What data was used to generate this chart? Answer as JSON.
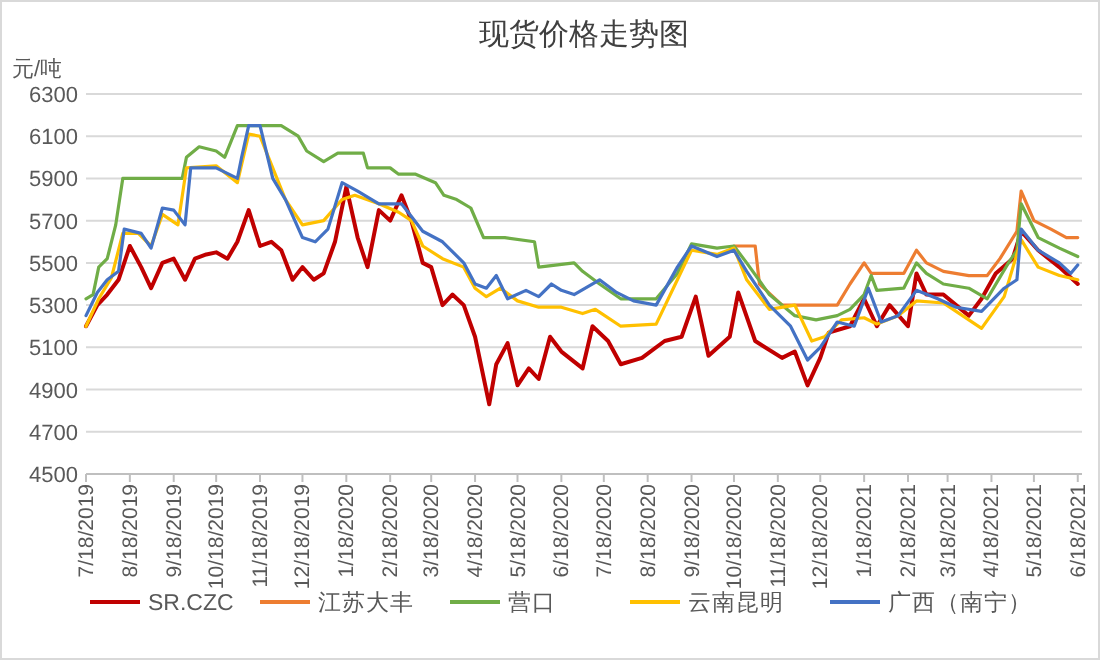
{
  "chart_data": {
    "type": "line",
    "title": "现货价格走势图",
    "ylabel": "元/吨",
    "xlim": [
      "2019-07-18",
      "2021-06-21"
    ],
    "ylim": [
      4500,
      6300
    ],
    "xticks": [
      {
        "value": "2019-07-18",
        "label": "7/18/2019"
      },
      {
        "value": "2019-08-18",
        "label": "8/18/2019"
      },
      {
        "value": "2019-09-18",
        "label": "9/18/2019"
      },
      {
        "value": "2019-10-18",
        "label": "10/18/2019"
      },
      {
        "value": "2019-11-18",
        "label": "11/18/2019"
      },
      {
        "value": "2019-12-18",
        "label": "12/18/2019"
      },
      {
        "value": "2020-01-18",
        "label": "1/18/2020"
      },
      {
        "value": "2020-02-18",
        "label": "2/18/2020"
      },
      {
        "value": "2020-03-18",
        "label": "3/18/2020"
      },
      {
        "value": "2020-04-18",
        "label": "4/18/2020"
      },
      {
        "value": "2020-05-18",
        "label": "5/18/2020"
      },
      {
        "value": "2020-06-18",
        "label": "6/18/2020"
      },
      {
        "value": "2020-07-18",
        "label": "7/18/2020"
      },
      {
        "value": "2020-08-18",
        "label": "8/18/2020"
      },
      {
        "value": "2020-09-18",
        "label": "9/18/2020"
      },
      {
        "value": "2020-10-18",
        "label": "10/18/2020"
      },
      {
        "value": "2020-11-18",
        "label": "11/18/2020"
      },
      {
        "value": "2020-12-18",
        "label": "12/18/2020"
      },
      {
        "value": "2021-01-18",
        "label": "1/18/2021"
      },
      {
        "value": "2021-02-18",
        "label": "2/18/2021"
      },
      {
        "value": "2021-03-18",
        "label": "3/18/2021"
      },
      {
        "value": "2021-04-18",
        "label": "4/18/2021"
      },
      {
        "value": "2021-05-18",
        "label": "5/18/2021"
      },
      {
        "value": "2021-06-18",
        "label": "6/18/2021"
      }
    ],
    "yticks": [
      4500,
      4700,
      4900,
      5100,
      5300,
      5500,
      5700,
      5900,
      6100,
      6300
    ],
    "grid": "y",
    "legend": "bottom",
    "marker": "none",
    "line_style": "solid",
    "series": [
      {
        "name": "SR.CZC",
        "color": "#c00000",
        "x": [
          "2019-07-18",
          "2019-07-26",
          "2019-08-02",
          "2019-08-10",
          "2019-08-18",
          "2019-08-26",
          "2019-09-02",
          "2019-09-10",
          "2019-09-18",
          "2019-09-26",
          "2019-10-03",
          "2019-10-11",
          "2019-10-18",
          "2019-10-26",
          "2019-11-02",
          "2019-11-10",
          "2019-11-18",
          "2019-11-26",
          "2019-12-03",
          "2019-12-11",
          "2019-12-18",
          "2019-12-26",
          "2020-01-02",
          "2020-01-10",
          "2020-01-18",
          "2020-01-26",
          "2020-02-02",
          "2020-02-10",
          "2020-02-18",
          "2020-02-26",
          "2020-03-04",
          "2020-03-12",
          "2020-03-18",
          "2020-03-26",
          "2020-04-02",
          "2020-04-10",
          "2020-04-18",
          "2020-04-28",
          "2020-05-03",
          "2020-05-11",
          "2020-05-18",
          "2020-05-26",
          "2020-06-02",
          "2020-06-10",
          "2020-06-18",
          "2020-07-03",
          "2020-07-10",
          "2020-07-21",
          "2020-07-30",
          "2020-08-14",
          "2020-08-30",
          "2020-09-11",
          "2020-09-21",
          "2020-09-30",
          "2020-10-15",
          "2020-10-21",
          "2020-11-02",
          "2020-11-21",
          "2020-11-30",
          "2020-12-09",
          "2020-12-18",
          "2020-12-24",
          "2021-01-08",
          "2021-01-18",
          "2021-01-27",
          "2021-02-05",
          "2021-02-18",
          "2021-02-24",
          "2021-03-03",
          "2021-03-15",
          "2021-03-24",
          "2021-04-02",
          "2021-04-11",
          "2021-04-21",
          "2021-05-03",
          "2021-05-09",
          "2021-05-21",
          "2021-06-05",
          "2021-06-18"
        ],
        "values": [
          5200,
          5300,
          5350,
          5420,
          5580,
          5480,
          5380,
          5500,
          5520,
          5420,
          5520,
          5540,
          5550,
          5520,
          5600,
          5750,
          5580,
          5600,
          5560,
          5420,
          5480,
          5420,
          5450,
          5600,
          5860,
          5620,
          5480,
          5750,
          5700,
          5820,
          5700,
          5500,
          5480,
          5300,
          5350,
          5300,
          5150,
          4830,
          5020,
          5120,
          4920,
          5000,
          4950,
          5150,
          5080,
          5000,
          5200,
          5130,
          5020,
          5050,
          5130,
          5150,
          5340,
          5060,
          5150,
          5360,
          5130,
          5050,
          5080,
          4920,
          5050,
          5170,
          5200,
          5330,
          5200,
          5300,
          5200,
          5450,
          5350,
          5350,
          5300,
          5250,
          5330,
          5450,
          5520,
          5650,
          5560,
          5480,
          5400
        ]
      },
      {
        "name": "江苏大丰",
        "color": "#ed7d31",
        "x": [
          "2020-10-18",
          "2020-11-02",
          "2020-11-05",
          "2020-11-21",
          "2020-12-30",
          "2021-01-08",
          "2021-01-18",
          "2021-01-23",
          "2021-02-15",
          "2021-02-24",
          "2021-03-03",
          "2021-03-15",
          "2021-04-02",
          "2021-04-15",
          "2021-04-24",
          "2021-05-06",
          "2021-05-09",
          "2021-05-18",
          "2021-05-30",
          "2021-06-10",
          "2021-06-18"
        ],
        "values": [
          5580,
          5580,
          5400,
          5300,
          5300,
          5400,
          5500,
          5450,
          5450,
          5560,
          5500,
          5460,
          5440,
          5440,
          5520,
          5650,
          5840,
          5700,
          5660,
          5620,
          5620
        ]
      },
      {
        "name": "营口",
        "color": "#70ad47",
        "x": [
          "2019-07-18",
          "2019-07-23",
          "2019-07-27",
          "2019-08-02",
          "2019-08-08",
          "2019-08-13",
          "2019-09-24",
          "2019-09-27",
          "2019-10-06",
          "2019-10-18",
          "2019-10-24",
          "2019-11-02",
          "2019-12-03",
          "2019-12-15",
          "2019-12-21",
          "2020-01-02",
          "2020-01-12",
          "2020-01-30",
          "2020-02-02",
          "2020-02-18",
          "2020-02-24",
          "2020-03-07",
          "2020-03-21",
          "2020-03-27",
          "2020-04-05",
          "2020-04-15",
          "2020-04-24",
          "2020-05-09",
          "2020-05-30",
          "2020-06-02",
          "2020-06-27",
          "2020-07-03",
          "2020-07-15",
          "2020-07-30",
          "2020-08-24",
          "2020-09-08",
          "2020-09-18",
          "2020-10-06",
          "2020-10-18",
          "2020-10-27",
          "2020-11-12",
          "2020-11-30",
          "2020-12-15",
          "2020-12-30",
          "2021-01-08",
          "2021-01-18",
          "2021-01-23",
          "2021-01-27",
          "2021-02-15",
          "2021-02-24",
          "2021-03-03",
          "2021-03-15",
          "2021-04-02",
          "2021-04-15",
          "2021-04-30",
          "2021-05-06",
          "2021-05-09",
          "2021-05-21",
          "2021-06-05",
          "2021-06-18"
        ],
        "values": [
          5330,
          5350,
          5480,
          5520,
          5680,
          5900,
          5900,
          6000,
          6050,
          6030,
          6000,
          6150,
          6150,
          6100,
          6030,
          5980,
          6020,
          6020,
          5950,
          5950,
          5920,
          5920,
          5880,
          5820,
          5800,
          5760,
          5620,
          5620,
          5600,
          5480,
          5500,
          5460,
          5400,
          5330,
          5330,
          5450,
          5590,
          5570,
          5580,
          5500,
          5350,
          5250,
          5230,
          5250,
          5280,
          5350,
          5440,
          5370,
          5380,
          5500,
          5450,
          5400,
          5380,
          5330,
          5500,
          5560,
          5780,
          5620,
          5570,
          5530
        ]
      },
      {
        "name": "云南昆明",
        "color": "#ffc000",
        "x": [
          "2019-07-18",
          "2019-07-27",
          "2019-08-05",
          "2019-08-13",
          "2019-08-24",
          "2019-09-02",
          "2019-09-10",
          "2019-09-21",
          "2019-09-27",
          "2019-10-18",
          "2019-11-02",
          "2019-11-10",
          "2019-11-18",
          "2019-11-24",
          "2019-12-06",
          "2019-12-18",
          "2020-01-02",
          "2020-01-15",
          "2020-01-24",
          "2020-02-10",
          "2020-02-24",
          "2020-03-04",
          "2020-03-12",
          "2020-03-26",
          "2020-04-10",
          "2020-04-18",
          "2020-04-26",
          "2020-05-06",
          "2020-05-18",
          "2020-06-02",
          "2020-06-18",
          "2020-07-03",
          "2020-07-12",
          "2020-07-30",
          "2020-08-24",
          "2020-09-08",
          "2020-09-18",
          "2020-10-06",
          "2020-10-18",
          "2020-10-27",
          "2020-11-12",
          "2020-11-30",
          "2020-12-12",
          "2020-12-21",
          "2021-01-02",
          "2021-01-18",
          "2021-01-27",
          "2021-02-11",
          "2021-02-24",
          "2021-03-15",
          "2021-03-24",
          "2021-04-11",
          "2021-04-27",
          "2021-05-09",
          "2021-05-21",
          "2021-06-05",
          "2021-06-18"
        ],
        "values": [
          5200,
          5330,
          5430,
          5640,
          5640,
          5580,
          5730,
          5680,
          5950,
          5960,
          5880,
          6110,
          6100,
          6000,
          5800,
          5680,
          5700,
          5800,
          5820,
          5780,
          5740,
          5700,
          5580,
          5520,
          5480,
          5380,
          5340,
          5380,
          5320,
          5290,
          5290,
          5260,
          5280,
          5200,
          5210,
          5420,
          5560,
          5540,
          5570,
          5420,
          5280,
          5300,
          5130,
          5150,
          5230,
          5240,
          5210,
          5250,
          5320,
          5310,
          5270,
          5190,
          5340,
          5610,
          5480,
          5440,
          5420
        ]
      },
      {
        "name": "广西（南宁）",
        "color": "#4472c4",
        "x": [
          "2019-07-18",
          "2019-07-26",
          "2019-08-02",
          "2019-08-10",
          "2019-08-14",
          "2019-08-26",
          "2019-09-02",
          "2019-09-10",
          "2019-09-18",
          "2019-09-26",
          "2019-09-30",
          "2019-10-18",
          "2019-11-02",
          "2019-11-05",
          "2019-11-10",
          "2019-11-18",
          "2019-11-27",
          "2019-12-06",
          "2019-12-18",
          "2019-12-27",
          "2020-01-05",
          "2020-01-15",
          "2020-01-26",
          "2020-02-10",
          "2020-02-26",
          "2020-03-04",
          "2020-03-12",
          "2020-03-26",
          "2020-04-10",
          "2020-04-18",
          "2020-04-26",
          "2020-05-03",
          "2020-05-11",
          "2020-05-24",
          "2020-06-02",
          "2020-06-11",
          "2020-06-18",
          "2020-06-27",
          "2020-07-15",
          "2020-07-27",
          "2020-08-08",
          "2020-08-24",
          "2020-09-08",
          "2020-09-18",
          "2020-10-06",
          "2020-10-18",
          "2020-10-27",
          "2020-11-12",
          "2020-11-27",
          "2020-12-09",
          "2020-12-18",
          "2020-12-30",
          "2021-01-11",
          "2021-01-21",
          "2021-01-30",
          "2021-02-11",
          "2021-02-24",
          "2021-03-11",
          "2021-03-24",
          "2021-04-11",
          "2021-04-27",
          "2021-05-06",
          "2021-05-09",
          "2021-05-21",
          "2021-06-05",
          "2021-06-13",
          "2021-06-18"
        ],
        "values": [
          5250,
          5360,
          5420,
          5460,
          5660,
          5640,
          5570,
          5760,
          5750,
          5680,
          5950,
          5950,
          5900,
          6000,
          6150,
          6150,
          5900,
          5800,
          5620,
          5600,
          5660,
          5880,
          5840,
          5780,
          5780,
          5720,
          5650,
          5600,
          5500,
          5400,
          5380,
          5440,
          5330,
          5370,
          5340,
          5400,
          5370,
          5350,
          5420,
          5360,
          5320,
          5300,
          5480,
          5580,
          5530,
          5560,
          5460,
          5300,
          5200,
          5040,
          5100,
          5220,
          5200,
          5380,
          5220,
          5250,
          5370,
          5330,
          5290,
          5270,
          5380,
          5420,
          5660,
          5560,
          5500,
          5450,
          5490
        ]
      }
    ]
  }
}
